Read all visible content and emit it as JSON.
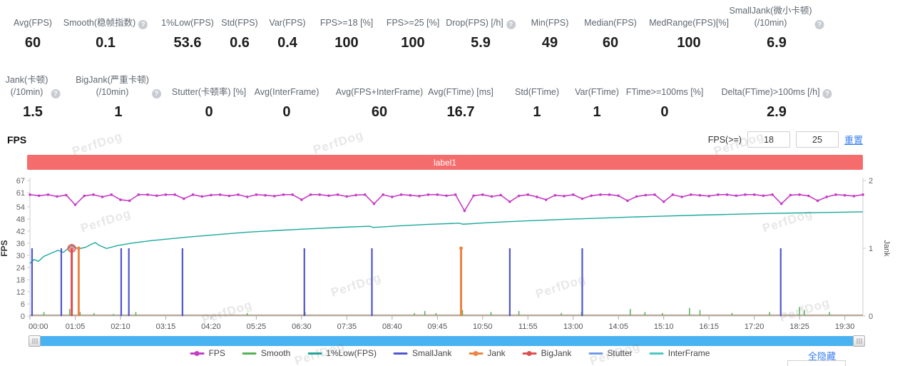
{
  "watermark": {
    "text": "PerfDog"
  },
  "metrics_row1": [
    {
      "label": "Avg(FPS)",
      "value": "60"
    },
    {
      "label": "Smooth(稳帧指数)",
      "value": "0.1"
    },
    {
      "label": "1%Low(FPS)",
      "value": "53.6"
    },
    {
      "label": "Std(FPS)",
      "value": "0.6"
    },
    {
      "label": "Var(FPS)",
      "value": "0.4"
    },
    {
      "label": "FPS>=18 [%]",
      "value": "100"
    },
    {
      "label": "FPS>=25 [%]",
      "value": "100"
    },
    {
      "label": "Drop(FPS) [/h]",
      "value": "5.9"
    },
    {
      "label": "Min(FPS)",
      "value": "49"
    },
    {
      "label": "Median(FPS)",
      "value": "60"
    },
    {
      "label": "MedRange(FPS)[%]",
      "value": "100"
    },
    {
      "label": "SmallJank(微小卡顿)\n(/10min)",
      "value": "6.9"
    }
  ],
  "metrics_row2": [
    {
      "label": "Jank(卡顿)\n(/10min)",
      "value": "1.5"
    },
    {
      "label": "BigJank(严重卡顿)\n(/10min)",
      "value": "1"
    },
    {
      "label": "Stutter(卡顿率) [%]",
      "value": "0"
    },
    {
      "label": "Avg(InterFrame)",
      "value": "0"
    },
    {
      "label": "Avg(FPS+InterFrame)",
      "value": "60"
    },
    {
      "label": "Avg(FTime) [ms]",
      "value": "16.7"
    },
    {
      "label": "Std(FTime)",
      "value": "1"
    },
    {
      "label": "Var(FTime)",
      "value": "1"
    },
    {
      "label": "FTime>=100ms [%]",
      "value": "0"
    },
    {
      "label": "Delta(FTime)>100ms [/h]",
      "value": "2.9"
    }
  ],
  "section": {
    "title": "FPS"
  },
  "fps_filter": {
    "label": "FPS(>=)",
    "min": "18",
    "max": "25",
    "reset_label": "重置"
  },
  "banner": {
    "label": "label1",
    "color": "#f56c6c"
  },
  "hide_all_label": "全隐藏",
  "chart_data": {
    "type": "line",
    "title": "label1",
    "duration_s": 1196,
    "x_tick_step_s": 65,
    "x_ticks": [
      "00:00",
      "01:05",
      "02:10",
      "03:15",
      "04:20",
      "05:25",
      "06:30",
      "07:35",
      "08:40",
      "09:45",
      "10:50",
      "11:55",
      "13:00",
      "14:05",
      "15:10",
      "16:15",
      "17:20",
      "18:25",
      "19:30"
    ],
    "left_axis": {
      "label": "FPS",
      "max": 67,
      "ticks": [
        0,
        6,
        12,
        18,
        24,
        30,
        36,
        42,
        48,
        54,
        61,
        67
      ]
    },
    "right_axis": {
      "label": "Jank",
      "max": 2,
      "ticks": [
        0,
        1,
        2
      ]
    },
    "baseline_color": "#b9aca0",
    "series": {
      "fps": {
        "name": "FPS",
        "color": "#c53dc5",
        "baseline": 60,
        "sample_step_s": 13,
        "jitter_pattern": [
          0,
          -0.5,
          0,
          -0.9,
          -0.2,
          0,
          -0.6,
          0,
          -1.1,
          0,
          -0.3,
          -0.7,
          0,
          0,
          -0.5,
          0
        ],
        "dips": [
          [
            60,
            49
          ],
          [
            70,
            55
          ],
          [
            131,
            57.5
          ],
          [
            142,
            57
          ],
          [
            219,
            58
          ],
          [
            394,
            57.5
          ],
          [
            491,
            55.5
          ],
          [
            619,
            52
          ],
          [
            689,
            56.5
          ],
          [
            735,
            57.5
          ],
          [
            793,
            58
          ],
          [
            862,
            57
          ],
          [
            908,
            56.5
          ],
          [
            1078,
            55.5
          ],
          [
            1135,
            57
          ]
        ]
      },
      "low1": {
        "name": "1%Low(FPS)",
        "color": "#1ba99c",
        "points": [
          [
            0,
            26
          ],
          [
            6,
            28
          ],
          [
            12,
            27
          ],
          [
            20,
            29.5
          ],
          [
            30,
            31
          ],
          [
            40,
            32.5
          ],
          [
            48,
            31.5
          ],
          [
            55,
            33.5
          ],
          [
            60,
            35
          ],
          [
            64,
            34
          ],
          [
            70,
            33.2
          ],
          [
            80,
            34
          ],
          [
            88,
            35.5
          ],
          [
            94,
            36.3
          ],
          [
            99,
            35
          ],
          [
            104,
            34.3
          ],
          [
            110,
            33.4
          ],
          [
            125,
            34.8
          ],
          [
            145,
            36
          ],
          [
            175,
            37.3
          ],
          [
            219,
            38.8
          ],
          [
            260,
            40
          ],
          [
            310,
            41.4
          ],
          [
            360,
            42.4
          ],
          [
            394,
            43
          ],
          [
            450,
            43.9
          ],
          [
            488,
            44.4
          ],
          [
            493,
            43.8
          ],
          [
            530,
            44.6
          ],
          [
            570,
            45.3
          ],
          [
            616,
            45.9
          ],
          [
            622,
            45.4
          ],
          [
            660,
            46.2
          ],
          [
            710,
            47
          ],
          [
            760,
            47.7
          ],
          [
            810,
            48.3
          ],
          [
            860,
            48.9
          ],
          [
            910,
            49.4
          ],
          [
            960,
            49.9
          ],
          [
            1010,
            50.3
          ],
          [
            1060,
            50.7
          ],
          [
            1110,
            51
          ],
          [
            1196,
            51.5
          ]
        ]
      },
      "smooth": {
        "name": "Smooth",
        "color": "#53b156",
        "events": [
          [
            20,
            2
          ],
          [
            57,
            3.5
          ],
          [
            72,
            2
          ],
          [
            92,
            1.5
          ],
          [
            120,
            1
          ],
          [
            152,
            2
          ],
          [
            219,
            2.5
          ],
          [
            312,
            1.5
          ],
          [
            395,
            2
          ],
          [
            491,
            2.5
          ],
          [
            552,
            1.5
          ],
          [
            567,
            2.5
          ],
          [
            583,
            1.5
          ],
          [
            621,
            3
          ],
          [
            662,
            2
          ],
          [
            702,
            2.5
          ],
          [
            763,
            1.5
          ],
          [
            792,
            2
          ],
          [
            862,
            3.5
          ],
          [
            883,
            2
          ],
          [
            908,
            1.5
          ],
          [
            947,
            4
          ],
          [
            962,
            3
          ],
          [
            1008,
            1.5
          ],
          [
            1062,
            2
          ],
          [
            1105,
            4.5
          ],
          [
            1112,
            3
          ],
          [
            1148,
            2
          ]
        ]
      },
      "smalljank": {
        "name": "SmallJank",
        "color": "#5156cd",
        "value": 1,
        "events": [
          3,
          45,
          131,
          142,
          219,
          394,
          491,
          689,
          793,
          1078
        ]
      },
      "jank": {
        "name": "Jank",
        "color": "#ed8441",
        "value": 1,
        "events": [
          70,
          619
        ]
      },
      "bigjank": {
        "name": "BigJank",
        "color": "#dd4e4e",
        "value": 1,
        "events": [
          60
        ]
      },
      "stutter": {
        "name": "Stutter",
        "color": "#6f9bea",
        "events": []
      },
      "interframe": {
        "name": "InterFrame",
        "color": "#49c8c0",
        "events": []
      }
    },
    "legend": [
      {
        "name": "FPS",
        "color": "#c53dc5",
        "dot": true
      },
      {
        "name": "Smooth",
        "color": "#53b156",
        "dot": false
      },
      {
        "name": "1%Low(FPS)",
        "color": "#1ba99c",
        "dot": false
      },
      {
        "name": "SmallJank",
        "color": "#5156cd",
        "dot": false
      },
      {
        "name": "Jank",
        "color": "#ed8441",
        "dot": true
      },
      {
        "name": "BigJank",
        "color": "#dd4e4e",
        "dot": true
      },
      {
        "name": "Stutter",
        "color": "#6f9bea",
        "dot": false
      },
      {
        "name": "InterFrame",
        "color": "#49c8c0",
        "dot": false
      }
    ]
  }
}
